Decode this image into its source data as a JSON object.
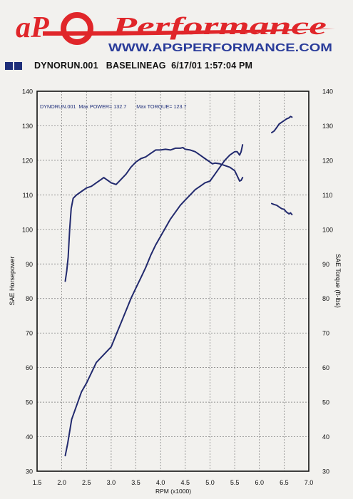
{
  "brand": {
    "logo_mark": "aP",
    "logo_word": "Performance",
    "url": "WWW.APGPERFORMANCE.COM",
    "colors": {
      "red": "#e0262a",
      "blue": "#2a3c9a"
    }
  },
  "run_header": {
    "run": "DYNORUN.001",
    "name": "BASELINEAG",
    "date_time": "6/17/01 1:57:04 PM",
    "color": "#1f2f7a"
  },
  "chart_data": {
    "type": "line",
    "annotation": "DYNORUN.001  Max POWER= 132.7       Max TORQUE= 123.7",
    "xlabel": "RPM (x1000)",
    "ylabel_left": "SAE Horsepower",
    "ylabel_right": "SAE Torque (ft-lbs)",
    "xlim": [
      1.5,
      7.0
    ],
    "ylim": [
      30,
      140
    ],
    "ylim_right": [
      30,
      140
    ],
    "x_ticks": [
      1.5,
      2.0,
      2.5,
      3.0,
      3.5,
      4.0,
      4.5,
      5.0,
      5.5,
      6.0,
      6.5,
      7.0
    ],
    "x_tick_labels": [
      "1.5",
      "2.0",
      "2.5",
      "3.0",
      "3.5",
      "4.0",
      "4.5",
      "5.0",
      "5.5",
      "6.0",
      "6.5",
      "7.0"
    ],
    "y_ticks": [
      30,
      40,
      50,
      60,
      70,
      80,
      90,
      100,
      110,
      120,
      130,
      140
    ],
    "y_tick_labels": [
      "30",
      "40",
      "50",
      "60",
      "70",
      "80",
      "90",
      "100",
      "110",
      "120",
      "130",
      "140"
    ],
    "grid": true,
    "line_color": "#222a6e",
    "series": [
      {
        "points": [
          [
            2.07,
            34.5
          ],
          [
            2.12,
            38
          ],
          [
            2.2,
            45
          ],
          [
            2.3,
            49
          ],
          [
            2.4,
            53
          ],
          [
            2.5,
            55.5
          ],
          [
            2.6,
            58.5
          ],
          [
            2.7,
            61.5
          ],
          [
            2.8,
            63
          ],
          [
            2.9,
            64.5
          ],
          [
            3.0,
            66
          ],
          [
            3.1,
            69.5
          ],
          [
            3.2,
            73
          ],
          [
            3.3,
            76.5
          ],
          [
            3.4,
            80
          ],
          [
            3.5,
            83
          ],
          [
            3.6,
            86
          ],
          [
            3.7,
            89
          ],
          [
            3.8,
            92.5
          ],
          [
            3.9,
            95.5
          ],
          [
            4.0,
            98
          ],
          [
            4.1,
            100.5
          ],
          [
            4.2,
            103
          ],
          [
            4.3,
            105
          ],
          [
            4.4,
            107
          ],
          [
            4.5,
            108.5
          ],
          [
            4.6,
            110
          ],
          [
            4.7,
            111.5
          ],
          [
            4.8,
            112.5
          ],
          [
            4.9,
            113.5
          ],
          [
            5.0,
            114
          ],
          [
            5.1,
            116
          ],
          [
            5.2,
            118
          ],
          [
            5.3,
            120
          ],
          [
            5.4,
            121.5
          ],
          [
            5.5,
            122.5
          ],
          [
            5.55,
            122.5
          ],
          [
            5.6,
            121.5
          ],
          [
            5.63,
            122.5
          ],
          [
            5.66,
            124.5
          ]
        ]
      },
      {
        "points": [
          [
            6.25,
            128
          ],
          [
            6.3,
            128.5
          ],
          [
            6.35,
            129.5
          ],
          [
            6.4,
            130.5
          ],
          [
            6.45,
            131
          ],
          [
            6.5,
            131.5
          ],
          [
            6.55,
            132
          ],
          [
            6.6,
            132.3
          ],
          [
            6.63,
            132.7
          ],
          [
            6.66,
            132.5
          ]
        ]
      },
      {
        "points": [
          [
            2.07,
            85
          ],
          [
            2.1,
            88
          ],
          [
            2.13,
            92
          ],
          [
            2.16,
            100
          ],
          [
            2.19,
            106
          ],
          [
            2.23,
            109
          ],
          [
            2.3,
            110
          ],
          [
            2.4,
            111
          ],
          [
            2.5,
            112
          ],
          [
            2.6,
            112.5
          ],
          [
            2.7,
            113.5
          ],
          [
            2.8,
            114.5
          ],
          [
            2.85,
            115
          ],
          [
            2.9,
            114.5
          ],
          [
            3.0,
            113.5
          ],
          [
            3.1,
            113
          ],
          [
            3.2,
            114.5
          ],
          [
            3.3,
            116
          ],
          [
            3.4,
            118
          ],
          [
            3.5,
            119.5
          ],
          [
            3.6,
            120.5
          ],
          [
            3.7,
            121
          ],
          [
            3.8,
            122
          ],
          [
            3.9,
            123
          ],
          [
            4.0,
            123
          ],
          [
            4.1,
            123.2
          ],
          [
            4.2,
            123
          ],
          [
            4.3,
            123.5
          ],
          [
            4.4,
            123.5
          ],
          [
            4.45,
            123.7
          ],
          [
            4.5,
            123.2
          ],
          [
            4.6,
            123
          ],
          [
            4.7,
            122.5
          ],
          [
            4.8,
            121.5
          ],
          [
            4.9,
            120.5
          ],
          [
            5.0,
            119.5
          ],
          [
            5.05,
            119
          ],
          [
            5.1,
            119.2
          ],
          [
            5.2,
            119
          ],
          [
            5.3,
            118.5
          ],
          [
            5.4,
            118
          ],
          [
            5.5,
            117
          ],
          [
            5.55,
            115.5
          ],
          [
            5.6,
            114
          ],
          [
            5.63,
            114.2
          ],
          [
            5.66,
            115
          ]
        ]
      },
      {
        "points": [
          [
            6.25,
            107.5
          ],
          [
            6.3,
            107.2
          ],
          [
            6.35,
            107
          ],
          [
            6.4,
            106.5
          ],
          [
            6.45,
            106
          ],
          [
            6.5,
            105.8
          ],
          [
            6.55,
            105
          ],
          [
            6.6,
            104.5
          ],
          [
            6.63,
            104.8
          ],
          [
            6.66,
            104.3
          ]
        ]
      }
    ]
  }
}
